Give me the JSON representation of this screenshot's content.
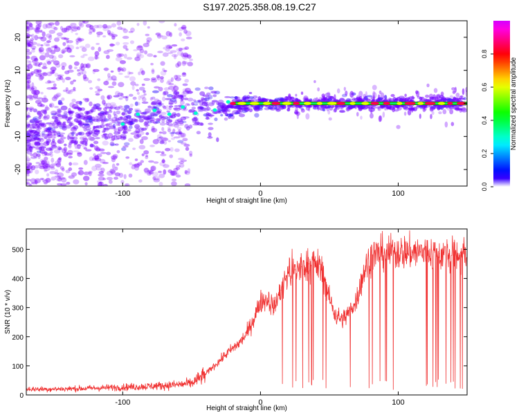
{
  "title": "S197.2025.358.08.19.C27",
  "colors": {
    "snr_line": "#f03030",
    "track": "#20a000",
    "scatter": "#7a00ff"
  },
  "chart_data": [
    {
      "type": "heatmap",
      "title": "S197.2025.358.08.19.C27",
      "xlabel": "Height of straight line (km)",
      "ylabel": "Frequency (Hz)",
      "xlim": [
        -170,
        150
      ],
      "ylim": [
        -25,
        25
      ],
      "xticks": [
        -100,
        0,
        100
      ],
      "xtick_labels": [
        "-100",
        "0",
        "100"
      ],
      "yticks": [
        -20,
        -10,
        0,
        10,
        20
      ],
      "ytick_labels": [
        "-20",
        "-10",
        "0",
        "10",
        "20"
      ],
      "colorbar": {
        "label": "Normalized spectral amplitude",
        "range": [
          0,
          1
        ],
        "ticks": [
          0.0,
          0.2,
          0.4,
          0.6,
          0.8
        ],
        "tick_labels": [
          "0.0",
          "0.2",
          "0.4",
          "0.6",
          "0.8"
        ]
      },
      "ridge": {
        "description": "dominant frequency ridge",
        "x": [
          -170,
          -120,
          -90,
          -60,
          -40,
          -25,
          -10,
          0,
          20,
          50,
          100,
          150
        ],
        "y": [
          -9,
          -6,
          -4,
          -2,
          -1.5,
          -1.5,
          0,
          0,
          0,
          0,
          0,
          0
        ]
      }
    },
    {
      "type": "line",
      "xlabel": "Height of straight line (km)",
      "ylabel": "SNR (10 * v/v)",
      "xlim": [
        -170,
        150
      ],
      "ylim": [
        0,
        570
      ],
      "xticks": [
        -100,
        0,
        100
      ],
      "xtick_labels": [
        "-100",
        "0",
        "100"
      ],
      "yticks": [
        0,
        100,
        200,
        300,
        400,
        500
      ],
      "ytick_labels": [
        "0",
        "100",
        "200",
        "300",
        "400",
        "500"
      ],
      "series": [
        {
          "name": "SNR",
          "x": [
            -170,
            -150,
            -130,
            -110,
            -90,
            -70,
            -60,
            -50,
            -45,
            -40,
            -35,
            -30,
            -25,
            -20,
            -15,
            -10,
            -5,
            0,
            5,
            10,
            15,
            20,
            25,
            30,
            35,
            40,
            45,
            50,
            55,
            60,
            65,
            70,
            75,
            80,
            90,
            100,
            110,
            120,
            130,
            140,
            150
          ],
          "values": [
            20,
            20,
            22,
            25,
            28,
            32,
            35,
            40,
            55,
            70,
            95,
            115,
            140,
            160,
            180,
            210,
            260,
            320,
            330,
            300,
            360,
            420,
            430,
            440,
            450,
            450,
            430,
            330,
            270,
            260,
            290,
            330,
            420,
            480,
            490,
            490,
            490,
            490,
            485,
            480,
            480
          ]
        }
      ]
    }
  ]
}
